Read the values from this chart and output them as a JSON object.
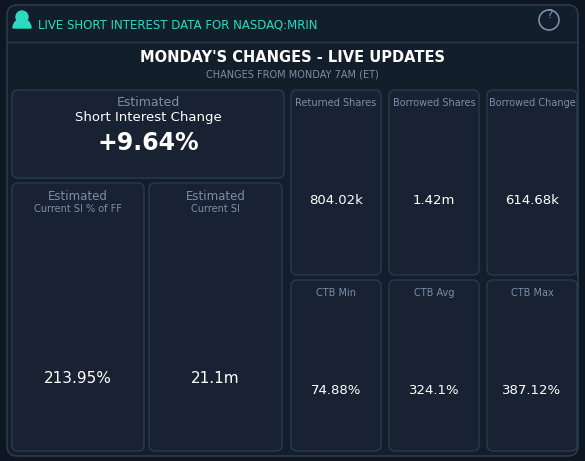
{
  "bg_color": "#0e1621",
  "panel_color": "#131e2b",
  "card_color": "#192232",
  "border_color": "#2a3a50",
  "text_white": "#ffffff",
  "text_gray": "#7a8fa8",
  "text_teal": "#2dd9c0",
  "header_title": "LIVE SHORT INTEREST DATA FOR NASDAQ:MRIN",
  "section_title": "MONDAY'S CHANGES - LIVE UPDATES",
  "section_subtitle": "CHANGES FROM MONDAY 7AM (ET)",
  "est_label": "Estimated",
  "si_change_label": "Short Interest Change",
  "si_change_value": "+9.64%",
  "left_card1_label1": "Estimated",
  "left_card1_label2": "Current SI % of FF",
  "left_card1_value": "213.95%",
  "left_card2_label1": "Estimated",
  "left_card2_label2": "Current SI",
  "left_card2_value": "21.1m",
  "col1_label": "Returned Shares",
  "col2_label": "Borrowed Shares",
  "col3_label": "Borrowed Change",
  "col1_top_value": "804.02k",
  "col2_top_value": "1.42m",
  "col3_top_value": "614.68k",
  "col1_bot_label": "CTB Min",
  "col2_bot_label": "CTB Avg",
  "col3_bot_label": "CTB Max",
  "col1_bot_value": "74.88%",
  "col2_bot_value": "324.1%",
  "col3_bot_value": "387.12%"
}
